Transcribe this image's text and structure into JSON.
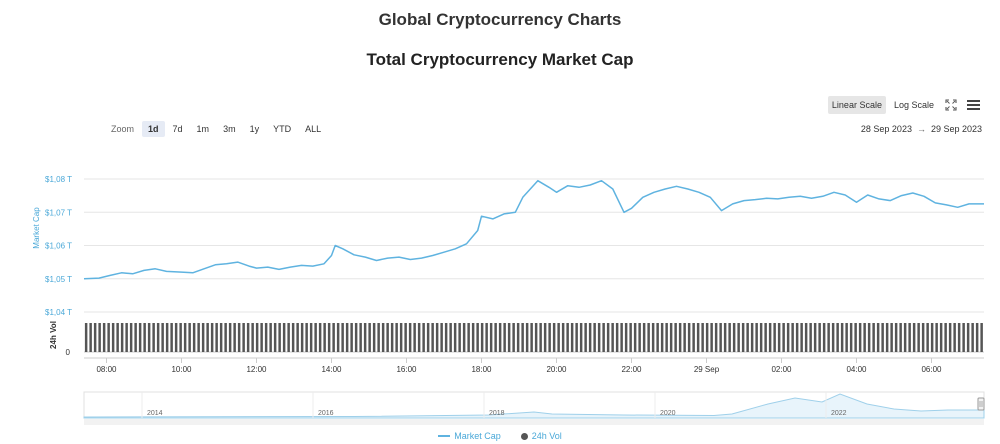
{
  "page": {
    "title": "Global Cryptocurrency Charts"
  },
  "toolbar": {
    "linear_label": "Linear Scale",
    "log_label": "Log Scale",
    "zoom_label": "Zoom",
    "zoom_options": [
      "1d",
      "7d",
      "1m",
      "3m",
      "1y",
      "YTD",
      "ALL"
    ],
    "zoom_selected": "1d",
    "date_from": "28 Sep 2023",
    "date_arrow": "→",
    "date_to": "29 Sep 2023"
  },
  "legend": {
    "market_cap": "Market Cap",
    "volume": "24h Vol"
  },
  "colors": {
    "line": "#5fb3e0",
    "axis_label": "#4aa8d8",
    "volume_bar": "#555555",
    "grid": "#e6e6e6"
  },
  "icons": [
    "fullscreen-icon",
    "menu-icon"
  ],
  "chart_data": {
    "type": "line",
    "title": "Total Cryptocurrency Market Cap",
    "ylabel": "Market Cap",
    "y_ticks": [
      "$1,08 T",
      "$1,07 T",
      "$1,06 T",
      "$1,05 T",
      "$1,04 T"
    ],
    "y_tick_values": [
      1.08,
      1.07,
      1.06,
      1.05,
      1.04
    ],
    "ylim": [
      1.04,
      1.08
    ],
    "volume_ylabel": "24h Vol",
    "volume_ticks": [
      "0"
    ],
    "x_ticks": [
      "08:00",
      "10:00",
      "12:00",
      "14:00",
      "16:00",
      "18:00",
      "20:00",
      "22:00",
      "29 Sep",
      "02:00",
      "04:00",
      "06:00"
    ],
    "x_tick_hours": [
      8,
      10,
      12,
      14,
      16,
      18,
      20,
      22,
      24,
      26,
      28,
      30
    ],
    "x_range_hours": [
      7.4,
      31.4
    ],
    "grid": true,
    "legend_position": "bottom-center",
    "series": [
      {
        "name": "Market Cap",
        "points": [
          [
            7.4,
            1.05
          ],
          [
            7.8,
            1.0502
          ],
          [
            8.1,
            1.051
          ],
          [
            8.4,
            1.0518
          ],
          [
            8.7,
            1.0515
          ],
          [
            9.0,
            1.0525
          ],
          [
            9.3,
            1.053
          ],
          [
            9.6,
            1.0522
          ],
          [
            10.0,
            1.052
          ],
          [
            10.3,
            1.0518
          ],
          [
            10.6,
            1.053
          ],
          [
            10.9,
            1.0542
          ],
          [
            11.2,
            1.0545
          ],
          [
            11.5,
            1.055
          ],
          [
            11.8,
            1.0538
          ],
          [
            12.0,
            1.0532
          ],
          [
            12.3,
            1.0535
          ],
          [
            12.6,
            1.0528
          ],
          [
            12.9,
            1.0535
          ],
          [
            13.2,
            1.054
          ],
          [
            13.5,
            1.0538
          ],
          [
            13.8,
            1.0545
          ],
          [
            14.0,
            1.057
          ],
          [
            14.1,
            1.06
          ],
          [
            14.3,
            1.059
          ],
          [
            14.6,
            1.0572
          ],
          [
            14.9,
            1.0565
          ],
          [
            15.2,
            1.0555
          ],
          [
            15.5,
            1.0562
          ],
          [
            15.8,
            1.0565
          ],
          [
            16.1,
            1.0558
          ],
          [
            16.4,
            1.0562
          ],
          [
            16.7,
            1.057
          ],
          [
            17.0,
            1.058
          ],
          [
            17.3,
            1.059
          ],
          [
            17.6,
            1.0605
          ],
          [
            17.9,
            1.0645
          ],
          [
            18.0,
            1.0688
          ],
          [
            18.3,
            1.068
          ],
          [
            18.6,
            1.0695
          ],
          [
            18.9,
            1.07
          ],
          [
            19.1,
            1.0745
          ],
          [
            19.3,
            1.077
          ],
          [
            19.5,
            1.0795
          ],
          [
            19.8,
            1.0775
          ],
          [
            20.0,
            1.076
          ],
          [
            20.3,
            1.078
          ],
          [
            20.6,
            1.0775
          ],
          [
            20.9,
            1.0782
          ],
          [
            21.2,
            1.0795
          ],
          [
            21.5,
            1.077
          ],
          [
            21.8,
            1.07
          ],
          [
            22.0,
            1.0712
          ],
          [
            22.3,
            1.0745
          ],
          [
            22.6,
            1.076
          ],
          [
            22.9,
            1.077
          ],
          [
            23.2,
            1.0778
          ],
          [
            23.5,
            1.077
          ],
          [
            23.8,
            1.076
          ],
          [
            24.1,
            1.0745
          ],
          [
            24.4,
            1.0705
          ],
          [
            24.7,
            1.0725
          ],
          [
            25.0,
            1.0735
          ],
          [
            25.3,
            1.0738
          ],
          [
            25.6,
            1.0742
          ],
          [
            25.9,
            1.074
          ],
          [
            26.2,
            1.0745
          ],
          [
            26.5,
            1.0748
          ],
          [
            26.8,
            1.0742
          ],
          [
            27.1,
            1.0748
          ],
          [
            27.4,
            1.076
          ],
          [
            27.7,
            1.0752
          ],
          [
            28.0,
            1.073
          ],
          [
            28.3,
            1.0752
          ],
          [
            28.6,
            1.074
          ],
          [
            28.9,
            1.0735
          ],
          [
            29.2,
            1.075
          ],
          [
            29.5,
            1.0758
          ],
          [
            29.8,
            1.0748
          ],
          [
            30.1,
            1.0728
          ],
          [
            30.4,
            1.0722
          ],
          [
            30.7,
            1.0715
          ],
          [
            31.0,
            1.0725
          ],
          [
            31.4,
            1.0725
          ]
        ]
      }
    ],
    "navigator": {
      "x_ticks": [
        "2014",
        "2016",
        "2018",
        "2020",
        "2022"
      ]
    }
  }
}
